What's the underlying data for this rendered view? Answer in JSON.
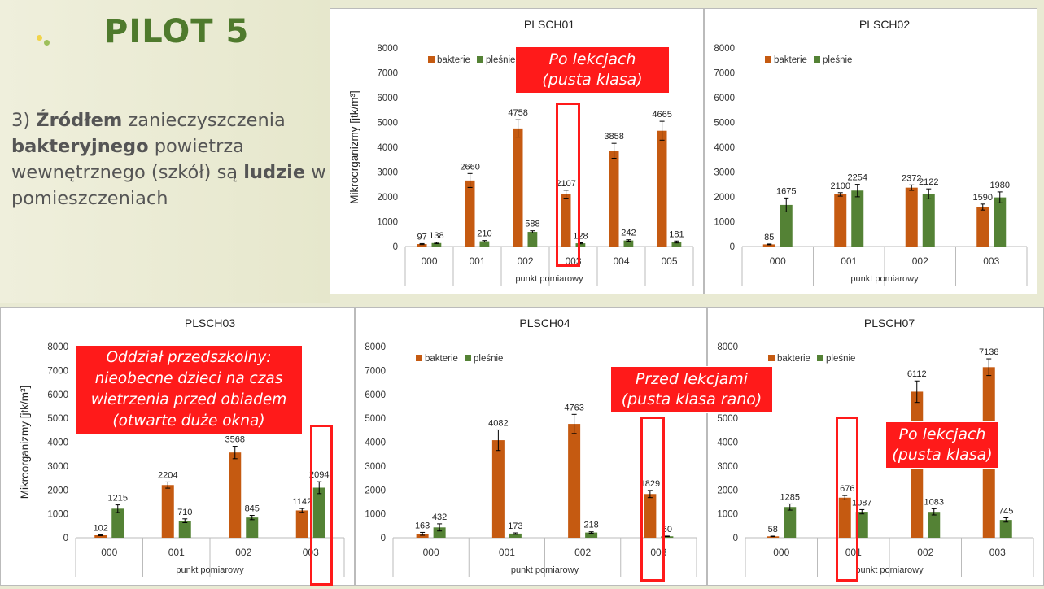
{
  "slide": {
    "title": "PILOT 5",
    "text": {
      "prefix": "3) ",
      "bold1": "Źródłem",
      "mid1": " zanieczyszczenia ",
      "bold2": "bakteryjnego",
      "mid2": " powietrza wewnętrznego (szkół) są ",
      "bold3": "ludzie",
      "end": " w pomieszczeniach"
    }
  },
  "callouts": {
    "c1": [
      "Po lekcjach",
      "(pusta klasa)"
    ],
    "c3": [
      "Oddział przedszkolny:",
      "nieobecne dzieci na czas",
      "wietrzenia przed obiadem",
      "(otwarte duże okna)"
    ],
    "c4": [
      "Przed lekcjami",
      "(pusta klasa rano)"
    ],
    "c7": [
      "Po lekcjach",
      "(pusta klasa)"
    ]
  },
  "colors": {
    "bakterie": "#c55a11",
    "plesnie": "#548235",
    "callout": "#ff1a1a"
  },
  "chart_data": [
    {
      "id": "c1",
      "type": "bar",
      "title": "PLSCH01",
      "categories": [
        "000",
        "001",
        "002",
        "003",
        "004",
        "005"
      ],
      "series": [
        {
          "name": "bakterie",
          "values": [
            97,
            2660,
            4758,
            2107,
            3858,
            4665
          ],
          "err": [
            20,
            280,
            350,
            160,
            300,
            380
          ]
        },
        {
          "name": "pleśnie",
          "values": [
            138,
            210,
            588,
            128,
            242,
            181
          ],
          "err": [
            25,
            30,
            45,
            20,
            30,
            40
          ]
        }
      ],
      "ylabel": "Mikroorganizmy [jtk/m³]",
      "xlabel": "punkt pomiarowy",
      "ylim": [
        0,
        8000
      ],
      "yticks": [
        0,
        1000,
        2000,
        3000,
        4000,
        5000,
        6000,
        7000,
        8000
      ],
      "legend": true
    },
    {
      "id": "c2",
      "type": "bar",
      "title": "PLSCH02",
      "categories": [
        "000",
        "001",
        "002",
        "003"
      ],
      "series": [
        {
          "name": "bakterie",
          "values": [
            85,
            2100,
            2372,
            1590
          ],
          "err": [
            15,
            70,
            110,
            120
          ]
        },
        {
          "name": "pleśnie",
          "values": [
            1675,
            2254,
            2122,
            1980
          ],
          "err": [
            280,
            250,
            200,
            220
          ]
        }
      ],
      "ylabel": "",
      "xlabel": "punkt pomiarowy",
      "ylim": [
        0,
        8000
      ],
      "yticks": [
        0,
        1000,
        2000,
        3000,
        4000,
        5000,
        6000,
        7000,
        8000
      ],
      "legend": true
    },
    {
      "id": "c3",
      "type": "bar",
      "title": "PLSCH03",
      "categories": [
        "000",
        "001",
        "002",
        "003"
      ],
      "series": [
        {
          "name": "bakterie",
          "values": [
            102,
            2204,
            3568,
            1142
          ],
          "err": [
            15,
            130,
            260,
            80
          ]
        },
        {
          "name": "pleśnie",
          "values": [
            1215,
            710,
            845,
            2094
          ],
          "err": [
            160,
            80,
            90,
            250
          ]
        }
      ],
      "ylabel": "Mikroorganizmy [jtk/m³]",
      "xlabel": "punkt pomiarowy",
      "ylim": [
        0,
        8000
      ],
      "yticks": [
        0,
        1000,
        2000,
        3000,
        4000,
        5000,
        6000,
        7000,
        8000
      ],
      "legend": false
    },
    {
      "id": "c4",
      "type": "bar",
      "title": "PLSCH04",
      "categories": [
        "000",
        "001",
        "002",
        "003"
      ],
      "series": [
        {
          "name": "bakterie",
          "values": [
            163,
            4082,
            4763,
            1829
          ],
          "err": [
            60,
            430,
            400,
            150
          ]
        },
        {
          "name": "pleśnie",
          "values": [
            432,
            173,
            218,
            60
          ],
          "err": [
            150,
            30,
            30,
            10
          ]
        }
      ],
      "ylabel": "",
      "xlabel": "punkt pomiarowy",
      "ylim": [
        0,
        8000
      ],
      "yticks": [
        0,
        1000,
        2000,
        3000,
        4000,
        5000,
        6000,
        7000,
        8000
      ],
      "legend": true
    },
    {
      "id": "c7",
      "type": "bar",
      "title": "PLSCH07",
      "categories": [
        "000",
        "001",
        "002",
        "003"
      ],
      "series": [
        {
          "name": "bakterie",
          "values": [
            58,
            1676,
            6112,
            7138
          ],
          "err": [
            10,
            90,
            450,
            350
          ]
        },
        {
          "name": "pleśnie",
          "values": [
            1285,
            1087,
            1083,
            745
          ],
          "err": [
            130,
            90,
            130,
            90
          ]
        }
      ],
      "ylabel": "",
      "xlabel": "punkt pomiarowy",
      "ylim": [
        0,
        8000
      ],
      "yticks": [
        0,
        1000,
        2000,
        3000,
        4000,
        5000,
        6000,
        7000,
        8000
      ],
      "legend": true
    }
  ]
}
